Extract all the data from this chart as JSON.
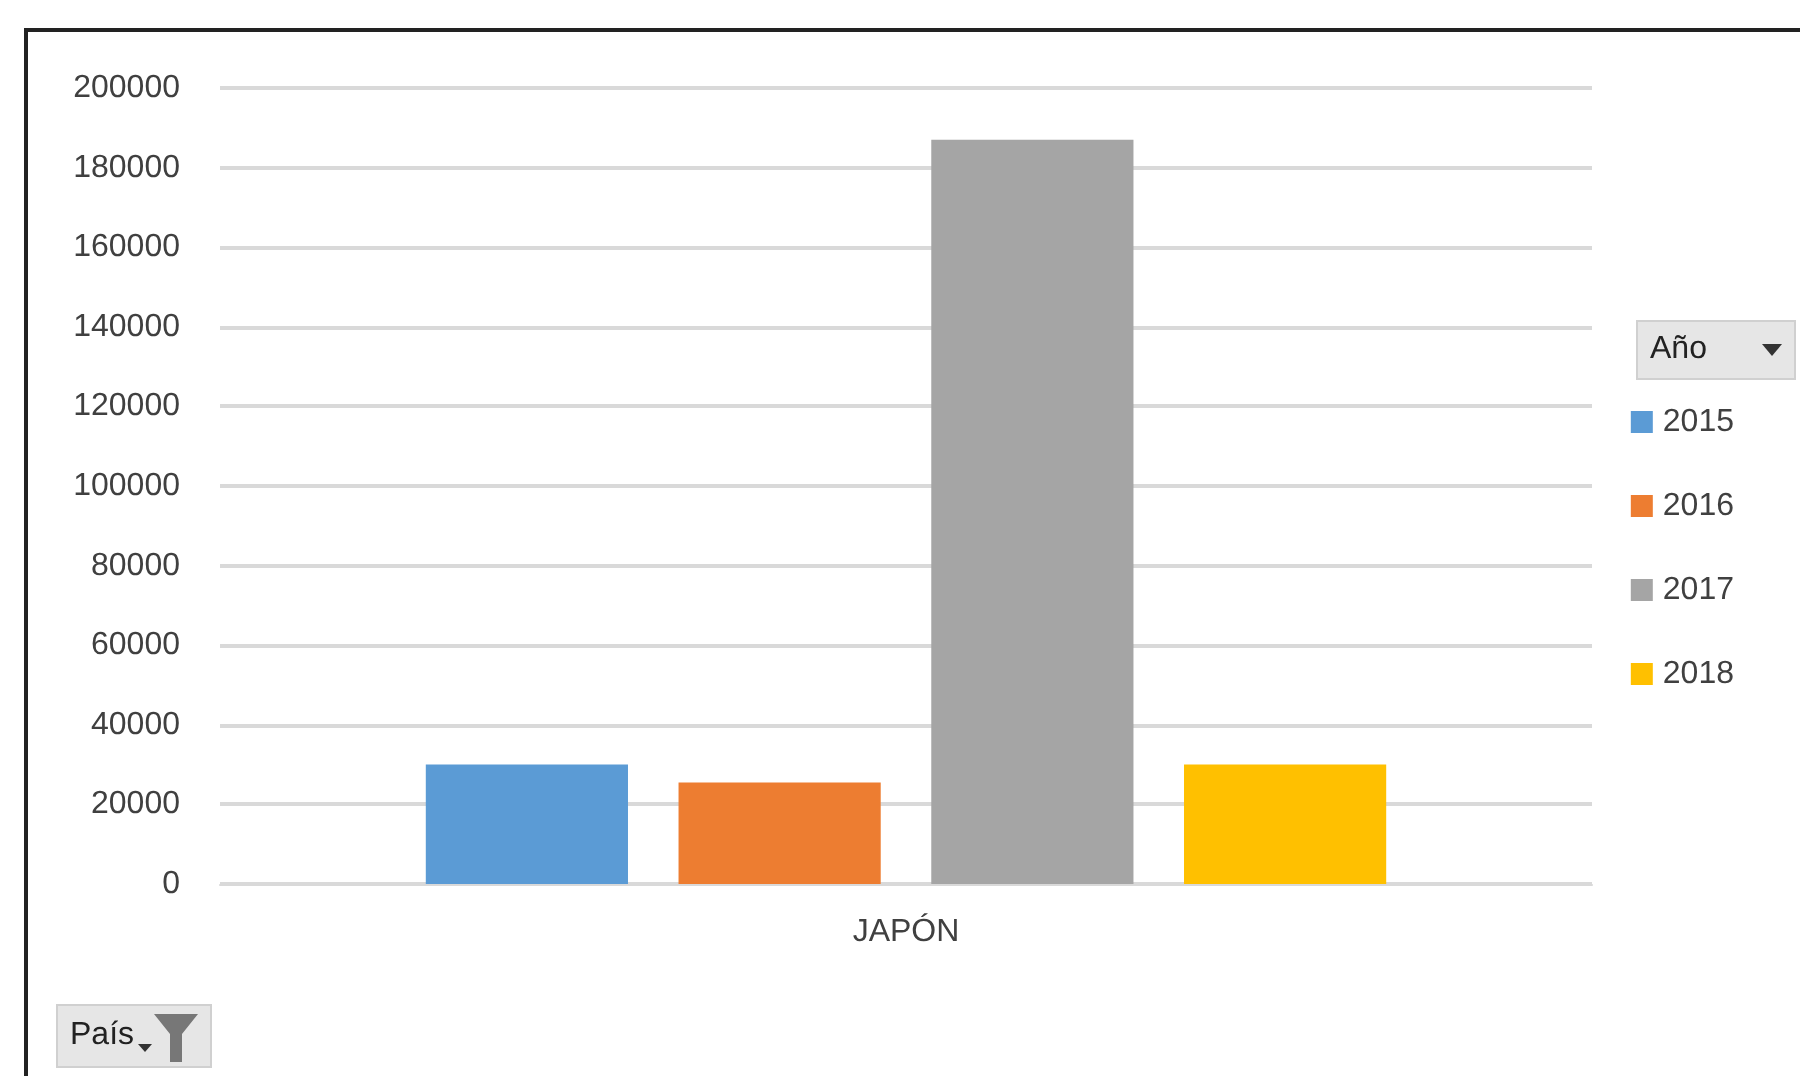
{
  "chart_data": {
    "type": "bar",
    "categories": [
      "JAPÓN"
    ],
    "series": [
      {
        "name": "2015",
        "color": "#5b9bd5",
        "values": [
          30000
        ]
      },
      {
        "name": "2016",
        "color": "#ed7d31",
        "values": [
          25500
        ]
      },
      {
        "name": "2017",
        "color": "#a5a5a5",
        "values": [
          187000
        ]
      },
      {
        "name": "2018",
        "color": "#ffc000",
        "values": [
          30000
        ]
      }
    ],
    "ylim": [
      0,
      200000
    ],
    "yticks": [
      0,
      20000,
      40000,
      60000,
      80000,
      100000,
      120000,
      140000,
      160000,
      180000,
      200000
    ],
    "grid": "y",
    "legend": "right",
    "legend_title": "Año",
    "annotations": [
      "País"
    ]
  }
}
